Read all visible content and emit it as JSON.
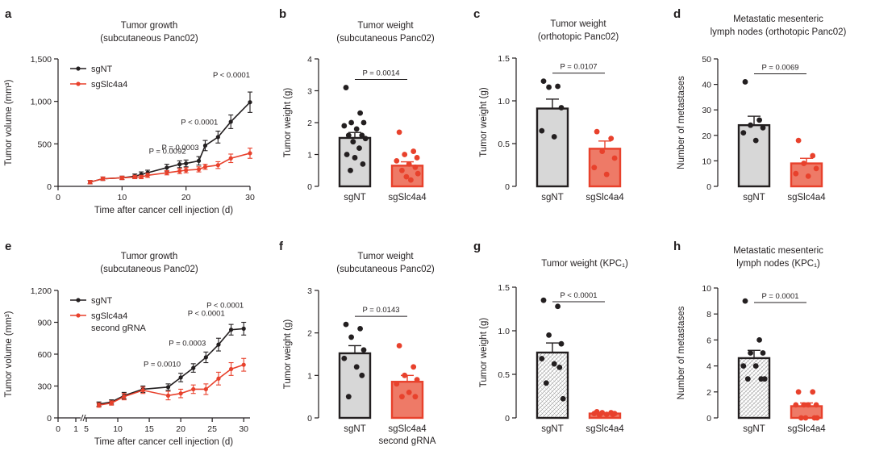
{
  "colors": {
    "black": "#231f20",
    "red": "#e8412c",
    "bar_gray": "#d7d7d7",
    "bar_red": "#ee7a67",
    "axis": "#231f20"
  },
  "chart_data": [
    {
      "panel": "a",
      "type": "line",
      "title": [
        "Tumor growth",
        "(subcutaneous Panc02)"
      ],
      "xlabel": "Time after cancer cell injection (d)",
      "ylabel": "Tumor volume (mm³)",
      "xlim": [
        0,
        30
      ],
      "ylim": [
        0,
        1500
      ],
      "xticks": [
        0,
        10,
        20,
        30
      ],
      "xtick_labels": [
        "0",
        "10",
        "20",
        "30"
      ],
      "yticks": [
        0,
        500,
        1000,
        1500
      ],
      "ytick_labels": [
        "0",
        "500",
        "1,000",
        "1,500"
      ],
      "series": [
        {
          "name": "sgNT",
          "color": "#231f20",
          "x": [
            5,
            7,
            10,
            12,
            13,
            14,
            17,
            19,
            20,
            22,
            23,
            25,
            27,
            30
          ],
          "y": [
            50,
            90,
            100,
            120,
            140,
            160,
            220,
            260,
            270,
            300,
            480,
            580,
            760,
            990
          ],
          "err": [
            20,
            20,
            20,
            25,
            30,
            30,
            40,
            40,
            40,
            50,
            60,
            70,
            80,
            120
          ]
        },
        {
          "name": "sgSlc4a4",
          "color": "#e8412c",
          "x": [
            5,
            7,
            10,
            12,
            13,
            14,
            17,
            19,
            20,
            22,
            23,
            25,
            27,
            30
          ],
          "y": [
            50,
            90,
            100,
            110,
            110,
            130,
            160,
            180,
            190,
            200,
            230,
            250,
            330,
            390
          ],
          "err": [
            20,
            20,
            20,
            20,
            20,
            25,
            25,
            30,
            30,
            30,
            30,
            40,
            50,
            60
          ]
        }
      ],
      "annotations": [
        {
          "text": "P = 0.0092",
          "x": 20
        },
        {
          "text": "P = 0.0003",
          "x": 22
        },
        {
          "text": "P < 0.0001",
          "x": 25
        },
        {
          "text": "P < 0.0001",
          "x": 30
        }
      ]
    },
    {
      "panel": "b",
      "type": "bar",
      "title": [
        "Tumor weight",
        "(subcutaneous Panc02)"
      ],
      "ylabel": "Tumor weight (g)",
      "categories": [
        "sgNT",
        "sgSlc4a4"
      ],
      "values": [
        1.52,
        0.65
      ],
      "errors": [
        0.17,
        0.12
      ],
      "points": [
        [
          3.1,
          2.3,
          2.0,
          2.0,
          1.9,
          1.8,
          1.6,
          1.6,
          1.5,
          1.4,
          1.2,
          1.0,
          0.9,
          0.7,
          0.5
        ],
        [
          1.7,
          1.1,
          1.0,
          0.9,
          0.8,
          0.7,
          0.6,
          0.5,
          0.4,
          0.3,
          0.2
        ]
      ],
      "ylim": [
        0,
        4
      ],
      "yticks": [
        0,
        1,
        2,
        3,
        4
      ],
      "p_value": "P = 0.0014",
      "fill": "plain"
    },
    {
      "panel": "c",
      "type": "bar",
      "title": [
        "Tumor weight",
        "(orthotopic Panc02)"
      ],
      "ylabel": "Tumor weight (g)",
      "categories": [
        "sgNT",
        "sgSlc4a4"
      ],
      "values": [
        0.91,
        0.44
      ],
      "errors": [
        0.11,
        0.09
      ],
      "points": [
        [
          1.23,
          1.17,
          1.16,
          0.92,
          0.65,
          0.58
        ],
        [
          0.64,
          0.56,
          0.41,
          0.33,
          0.22,
          0.14
        ]
      ],
      "ylim": [
        0,
        1.5
      ],
      "yticks": [
        0,
        0.5,
        1.0,
        1.5
      ],
      "ytick_labels": [
        "0",
        "0.5",
        "1.0",
        "1.5"
      ],
      "p_value": "P = 0.0107",
      "fill": "plain"
    },
    {
      "panel": "d",
      "type": "bar",
      "title": [
        "Metastatic mesenteric",
        "lymph nodes (orthotopic Panc02)"
      ],
      "ylabel": "Number of metastases",
      "categories": [
        "sgNT",
        "sgSlc4a4"
      ],
      "values": [
        24,
        9
      ],
      "errors": [
        3.5,
        2
      ],
      "points": [
        [
          41,
          26,
          24,
          23,
          21,
          18
        ],
        [
          18,
          12,
          9,
          7,
          5,
          4
        ]
      ],
      "ylim": [
        0,
        50
      ],
      "yticks": [
        0,
        10,
        20,
        30,
        40,
        50
      ],
      "p_value": "P = 0.0069",
      "fill": "plain"
    },
    {
      "panel": "e",
      "type": "line",
      "title": [
        "Tumor growth",
        "(subcutaneous Panc02)"
      ],
      "xlabel": "Time after cancer cell injection (d)",
      "ylabel": "Tumor volume (mm³)",
      "xlim": [
        0,
        31
      ],
      "ylim": [
        0,
        1200
      ],
      "xticks": [
        0,
        1,
        5,
        10,
        15,
        20,
        25,
        30
      ],
      "xtick_labels": [
        "0",
        "1",
        "5",
        "10",
        "15",
        "20",
        "25",
        "30"
      ],
      "yticks": [
        0,
        300,
        600,
        900,
        1200
      ],
      "ytick_labels": [
        "0",
        "300",
        "600",
        "900",
        "1,200"
      ],
      "series": [
        {
          "name": "sgNT",
          "color": "#231f20",
          "x": [
            7,
            9,
            11,
            14,
            18,
            20,
            22,
            24,
            26,
            28,
            30
          ],
          "y": [
            130,
            150,
            210,
            270,
            290,
            380,
            470,
            570,
            690,
            830,
            840
          ],
          "err": [
            20,
            20,
            30,
            30,
            30,
            40,
            40,
            50,
            60,
            50,
            60
          ]
        },
        {
          "name": "sgSlc4a4 second gRNA",
          "color": "#e8412c",
          "x": [
            7,
            9,
            11,
            14,
            18,
            20,
            22,
            24,
            26,
            28,
            30
          ],
          "y": [
            120,
            140,
            200,
            260,
            210,
            230,
            270,
            270,
            370,
            460,
            500
          ],
          "err": [
            20,
            20,
            30,
            30,
            40,
            40,
            40,
            50,
            60,
            60,
            60
          ]
        }
      ],
      "annotations": [
        {
          "text": "P = 0.0010",
          "x": 20
        },
        {
          "text": "P = 0.0003",
          "x": 24
        },
        {
          "text": "P < 0.0001",
          "x": 27
        },
        {
          "text": "P < 0.0001",
          "x": 30
        }
      ]
    },
    {
      "panel": "f",
      "type": "bar",
      "title": [
        "Tumor weight",
        "(subcutaneous Panc02)"
      ],
      "ylabel": "Tumor weight (g)",
      "categories": [
        "sgNT",
        "sgSlc4a4 second gRNA"
      ],
      "values": [
        1.52,
        0.85
      ],
      "errors": [
        0.18,
        0.15
      ],
      "points": [
        [
          2.2,
          2.1,
          1.9,
          1.6,
          1.4,
          1.2,
          1.0,
          0.5
        ],
        [
          1.7,
          1.2,
          1.0,
          0.9,
          0.8,
          0.6,
          0.5,
          0.5
        ]
      ],
      "ylim": [
        0,
        3
      ],
      "yticks": [
        0,
        1,
        2,
        3
      ],
      "p_value": "P = 0.0143",
      "fill": "plain"
    },
    {
      "panel": "g",
      "type": "bar",
      "title": [
        "Tumor weight (KPC₁)"
      ],
      "ylabel": "Tumor weight (g)",
      "categories": [
        "sgNT",
        "sgSlc4a4"
      ],
      "values": [
        0.75,
        0.05
      ],
      "errors": [
        0.11,
        0.01
      ],
      "points": [
        [
          1.35,
          1.28,
          0.95,
          0.85,
          0.68,
          0.62,
          0.58,
          0.4,
          0.22
        ],
        [
          0.07,
          0.06,
          0.06,
          0.05,
          0.05,
          0.04,
          0.04,
          0.03
        ]
      ],
      "ylim": [
        0,
        1.5
      ],
      "yticks": [
        0,
        0.5,
        1.0,
        1.5
      ],
      "ytick_labels": [
        "0",
        "0.5",
        "1.0",
        "1.5"
      ],
      "p_value": "P < 0.0001",
      "fill": "hatched"
    },
    {
      "panel": "h",
      "type": "bar",
      "title": [
        "Metastatic mesenteric",
        "lymph nodes (KPC₁)"
      ],
      "ylabel": "Number of metastases",
      "categories": [
        "sgNT",
        "sgSlc4a4"
      ],
      "values": [
        4.6,
        0.9
      ],
      "errors": [
        0.6,
        0.25
      ],
      "points": [
        [
          9,
          6,
          5,
          5,
          4,
          4,
          3,
          3,
          3
        ],
        [
          2,
          2,
          1,
          1,
          1,
          1,
          0,
          0,
          0,
          0
        ]
      ],
      "ylim": [
        0,
        10
      ],
      "yticks": [
        0,
        2,
        4,
        6,
        8,
        10
      ],
      "p_value": "P = 0.0001",
      "fill": "hatched"
    }
  ]
}
